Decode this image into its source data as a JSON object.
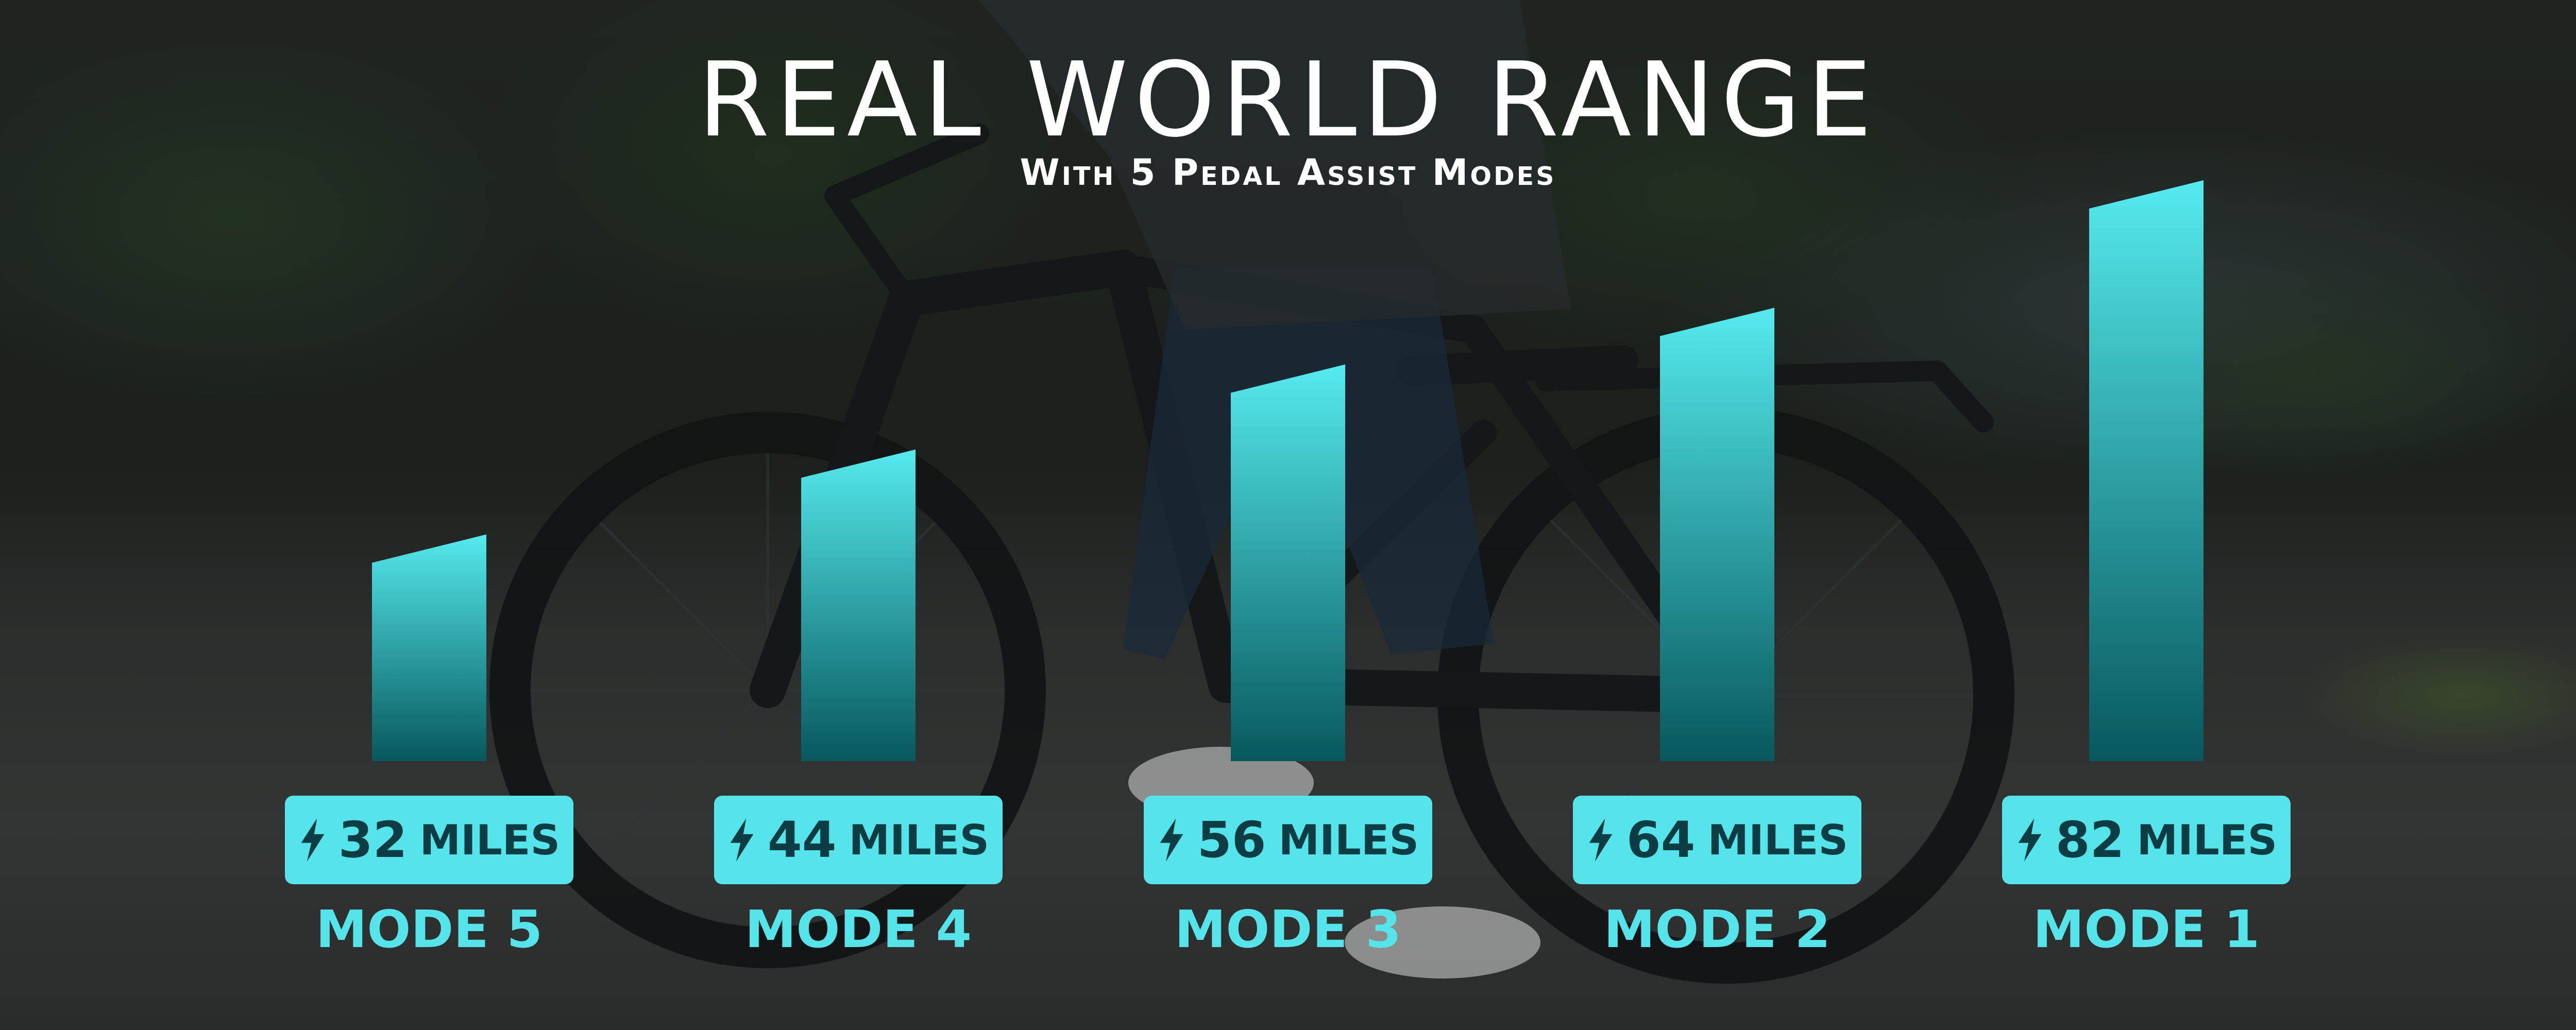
{
  "header": {
    "title": "REAL WORLD RANGE",
    "subtitle": "With 5 Pedal Assist Modes"
  },
  "colors": {
    "accent": "#54e4ea",
    "bar_top": "#55eaee",
    "bar_bottom": "#07585c",
    "pill_text": "#0c3d44"
  },
  "icons": {
    "range": "lightning-bolt-icon"
  },
  "chart_data": {
    "type": "bar",
    "categories": [
      "MODE 5",
      "MODE 4",
      "MODE 3",
      "MODE 2",
      "MODE 1"
    ],
    "values": [
      32,
      44,
      56,
      64,
      82
    ],
    "unit": "MILES",
    "value_labels": [
      "32",
      "44",
      "56",
      "64",
      "82"
    ],
    "grid": false,
    "legend": "none"
  }
}
